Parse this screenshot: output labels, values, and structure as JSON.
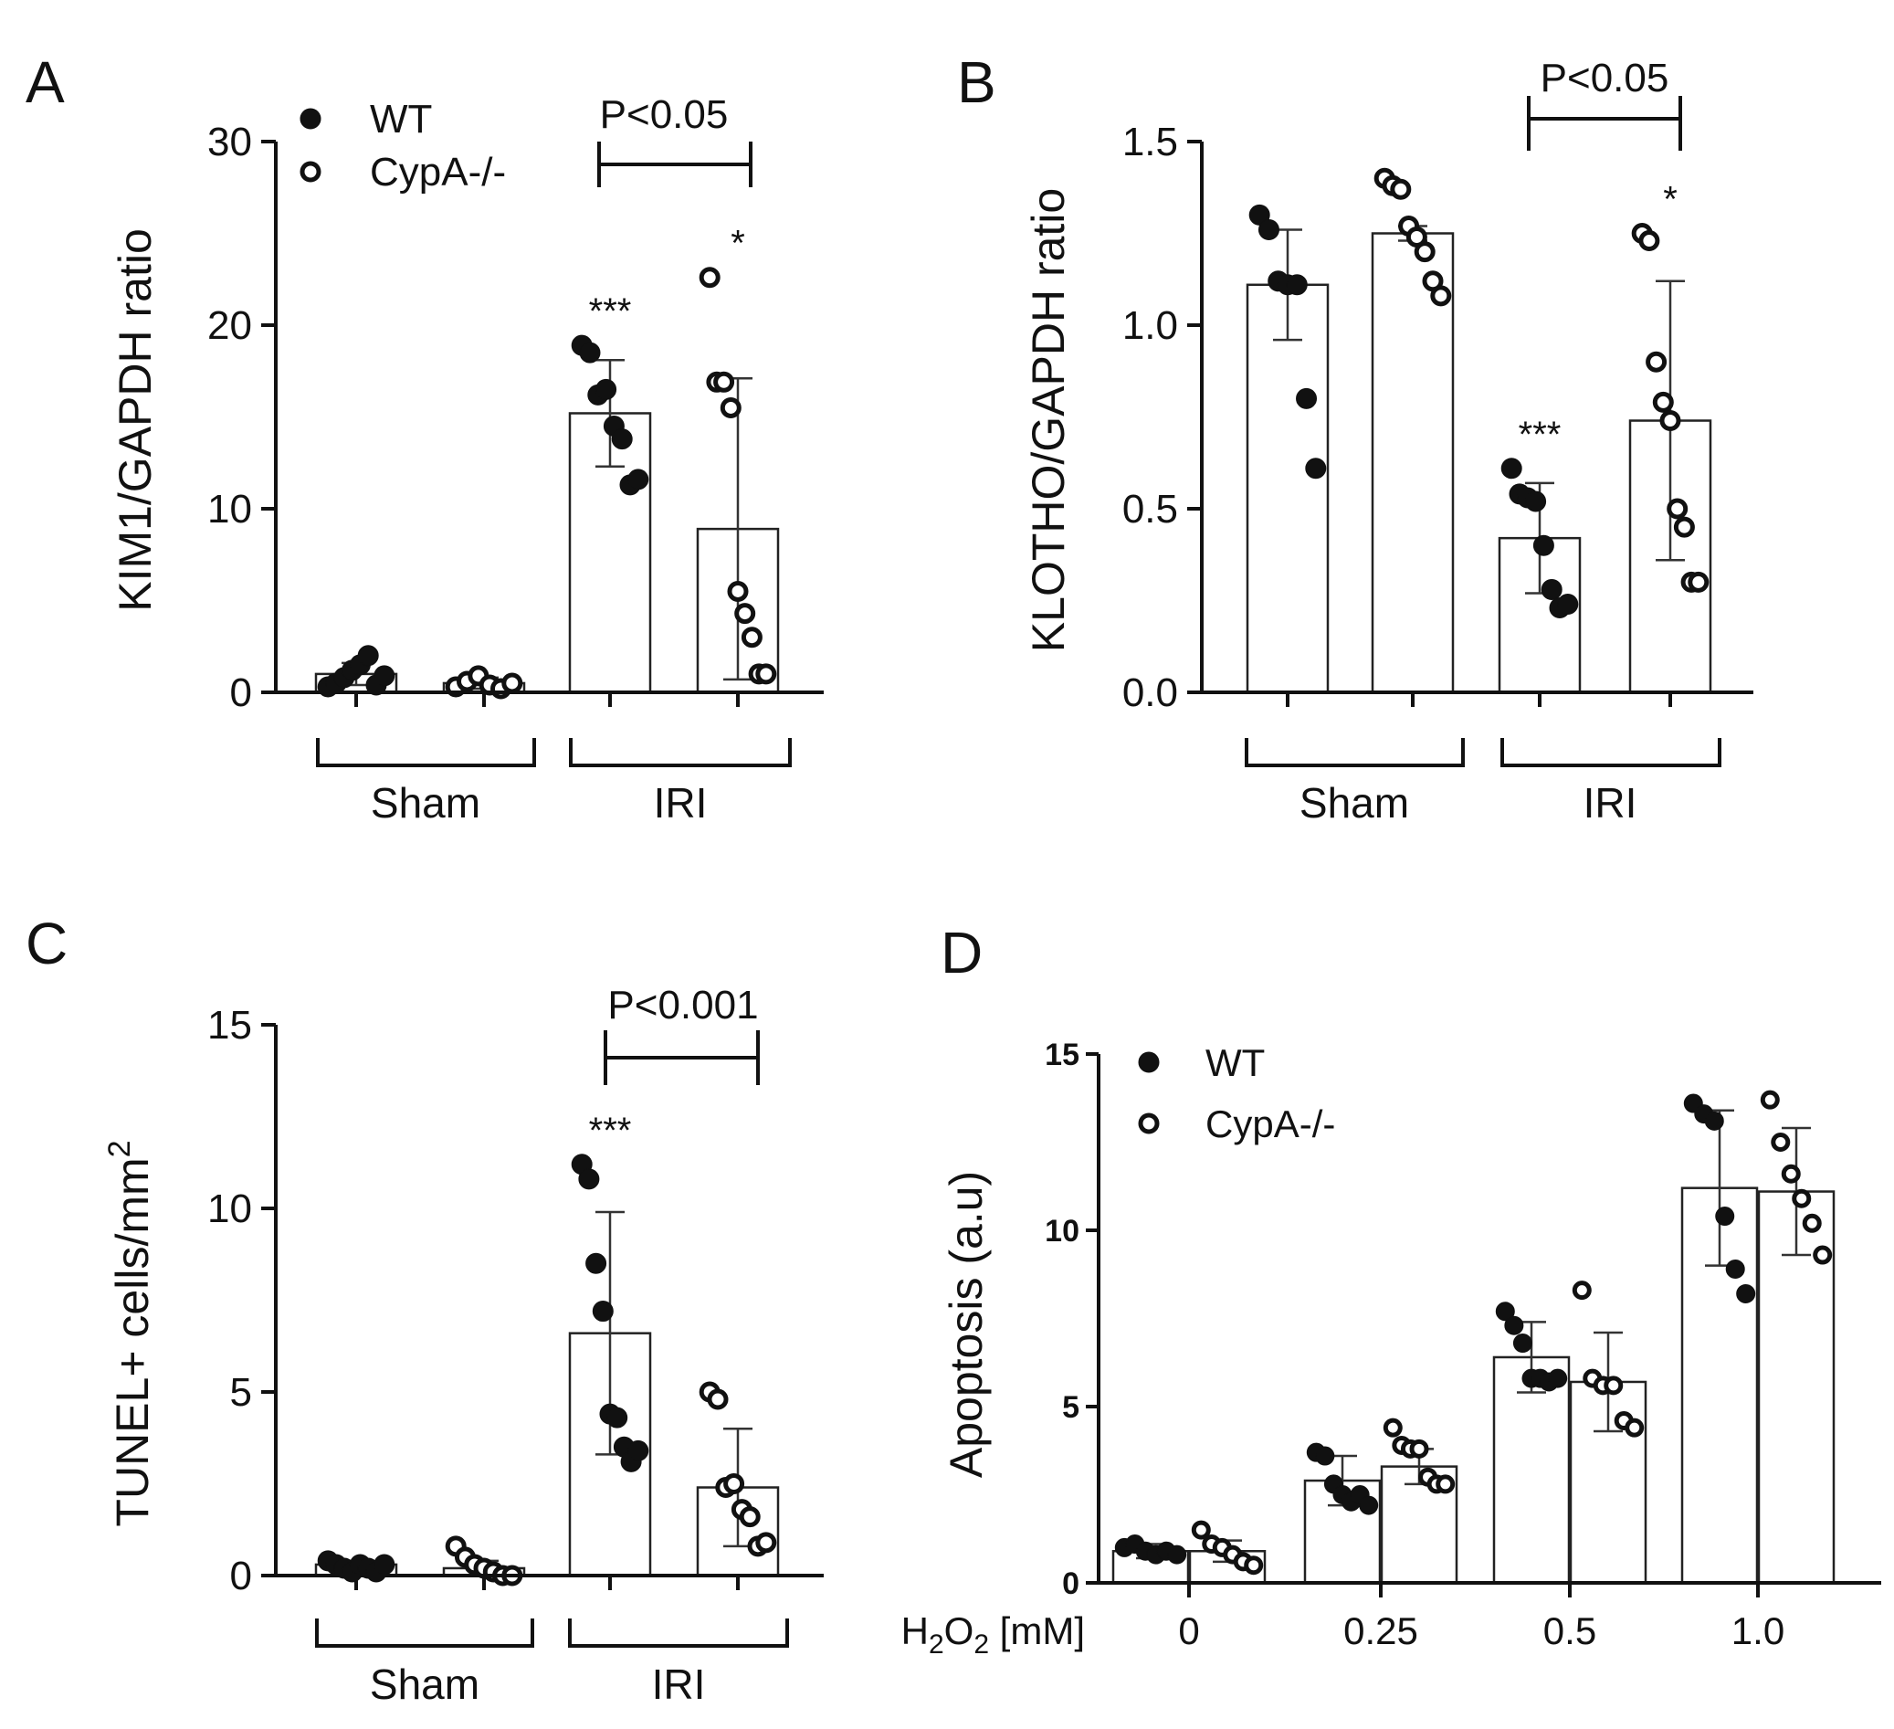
{
  "chart_data": [
    {
      "id": "A",
      "panel_label": "A",
      "type": "bar",
      "ylabel": "KIM1/GAPDH ratio",
      "ylim": [
        0,
        30
      ],
      "yticks": [
        "0",
        "10",
        "20",
        "30"
      ],
      "groups": [
        "Sham",
        "IRI"
      ],
      "legend": [
        "WT",
        "CypA-/-"
      ],
      "comparison": "P<0.05",
      "bars": [
        {
          "group": "Sham",
          "genotype": "WT",
          "mean": 1.0,
          "sd": 0.6,
          "points": [
            0.3,
            0.5,
            0.8,
            1.2,
            1.5,
            2.0,
            0.4,
            0.9
          ],
          "sig": ""
        },
        {
          "group": "Sham",
          "genotype": "CypA-/-",
          "mean": 0.5,
          "sd": 0.3,
          "points": [
            0.3,
            0.6,
            0.9,
            0.4,
            0.2,
            0.5
          ],
          "sig": ""
        },
        {
          "group": "IRI",
          "genotype": "WT",
          "mean": 15.2,
          "sd": 2.9,
          "points": [
            18.9,
            18.5,
            16.2,
            16.5,
            14.5,
            13.8,
            11.3,
            11.6
          ],
          "sig": "***"
        },
        {
          "group": "IRI",
          "genotype": "CypA-/-",
          "mean": 8.9,
          "sd": 8.2,
          "points": [
            22.6,
            16.9,
            16.9,
            15.5,
            5.5,
            4.3,
            3.0,
            1.0,
            1.0
          ],
          "sig": "*"
        }
      ]
    },
    {
      "id": "B",
      "panel_label": "B",
      "type": "bar",
      "ylabel": "KLOTHO/GAPDH ratio",
      "ylim": [
        0,
        1.5
      ],
      "yticks": [
        "0.0",
        "0.5",
        "1.0",
        "1.5"
      ],
      "groups": [
        "Sham",
        "IRI"
      ],
      "legend": [],
      "comparison": "P<0.05",
      "bars": [
        {
          "group": "Sham",
          "genotype": "WT",
          "mean": 1.11,
          "sd": 0.15,
          "points": [
            1.3,
            1.26,
            1.12,
            1.11,
            1.11,
            0.8,
            0.61
          ],
          "sig": ""
        },
        {
          "group": "Sham",
          "genotype": "CypA-/-",
          "mean": 1.25,
          "sd": 0.02,
          "points": [
            1.4,
            1.38,
            1.37,
            1.27,
            1.24,
            1.2,
            1.12,
            1.08
          ],
          "sig": ""
        },
        {
          "group": "IRI",
          "genotype": "WT",
          "mean": 0.42,
          "sd": 0.15,
          "points": [
            0.61,
            0.54,
            0.53,
            0.52,
            0.4,
            0.28,
            0.23,
            0.24
          ],
          "sig": "***"
        },
        {
          "group": "IRI",
          "genotype": "CypA-/-",
          "mean": 0.74,
          "sd": 0.38,
          "points": [
            1.25,
            1.23,
            0.9,
            0.79,
            0.74,
            0.5,
            0.45,
            0.3,
            0.3
          ],
          "sig": "*"
        }
      ]
    },
    {
      "id": "C",
      "panel_label": "C",
      "type": "bar",
      "ylabel": "TUNEL+ cells/mm",
      "ylabel_sup": "2",
      "ylim": [
        0,
        15
      ],
      "yticks": [
        "0",
        "5",
        "10",
        "15"
      ],
      "groups": [
        "Sham",
        "IRI"
      ],
      "legend": [],
      "comparison": "P<0.001",
      "bars": [
        {
          "group": "Sham",
          "genotype": "WT",
          "mean": 0.3,
          "sd": 0.1,
          "points": [
            0.4,
            0.3,
            0.2,
            0.1,
            0.3,
            0.2,
            0.1,
            0.3
          ],
          "sig": ""
        },
        {
          "group": "Sham",
          "genotype": "CypA-/-",
          "mean": 0.2,
          "sd": 0.2,
          "points": [
            0.8,
            0.5,
            0.3,
            0.2,
            0.1,
            0.0,
            0.0
          ],
          "sig": ""
        },
        {
          "group": "IRI",
          "genotype": "WT",
          "mean": 6.6,
          "sd": 3.3,
          "points": [
            11.2,
            10.8,
            8.5,
            7.2,
            4.4,
            4.3,
            3.5,
            3.1,
            3.4
          ],
          "sig": "***"
        },
        {
          "group": "IRI",
          "genotype": "CypA-/-",
          "mean": 2.4,
          "sd": 1.6,
          "points": [
            5.0,
            4.8,
            2.4,
            2.5,
            1.8,
            1.6,
            0.8,
            0.9
          ],
          "sig": ""
        }
      ]
    },
    {
      "id": "D",
      "panel_label": "D",
      "type": "bar",
      "ylabel": "Apoptosis (a.u)",
      "ylim": [
        0,
        15
      ],
      "yticks": [
        "0",
        "5",
        "10",
        "15"
      ],
      "xlabel_parts": [
        "H",
        "2",
        "O",
        "2",
        " [mM]"
      ],
      "categories": [
        "0",
        "0.25",
        "0.5",
        "1.0"
      ],
      "legend": [
        "WT",
        "CypA-/-"
      ],
      "bars": [
        {
          "dose": "0",
          "genotype": "WT",
          "mean": 0.9,
          "sd": 0.2,
          "points": [
            1.0,
            1.1,
            0.9,
            0.8,
            0.9,
            0.8
          ]
        },
        {
          "dose": "0",
          "genotype": "CypA-/-",
          "mean": 0.9,
          "sd": 0.3,
          "points": [
            1.5,
            1.1,
            1.0,
            0.8,
            0.6,
            0.5
          ]
        },
        {
          "dose": "0.25",
          "genotype": "WT",
          "mean": 2.9,
          "sd": 0.7,
          "points": [
            3.7,
            3.6,
            2.8,
            2.5,
            2.3,
            2.5,
            2.2
          ]
        },
        {
          "dose": "0.25",
          "genotype": "CypA-/-",
          "mean": 3.3,
          "sd": 0.5,
          "points": [
            4.4,
            3.9,
            3.8,
            3.8,
            3.0,
            2.8,
            2.8
          ]
        },
        {
          "dose": "0.5",
          "genotype": "WT",
          "mean": 6.4,
          "sd": 1.0,
          "points": [
            7.7,
            7.3,
            6.8,
            5.8,
            5.8,
            5.7,
            5.8
          ]
        },
        {
          "dose": "0.5",
          "genotype": "CypA-/-",
          "mean": 5.7,
          "sd": 1.4,
          "points": [
            8.3,
            5.8,
            5.6,
            5.6,
            4.6,
            4.4
          ]
        },
        {
          "dose": "1.0",
          "genotype": "WT",
          "mean": 11.2,
          "sd": 2.2,
          "points": [
            13.6,
            13.3,
            13.1,
            10.4,
            8.9,
            8.2
          ]
        },
        {
          "dose": "1.0",
          "genotype": "CypA-/-",
          "mean": 11.1,
          "sd": 1.8,
          "points": [
            13.7,
            12.5,
            11.6,
            10.9,
            10.2,
            9.3
          ]
        }
      ]
    }
  ]
}
